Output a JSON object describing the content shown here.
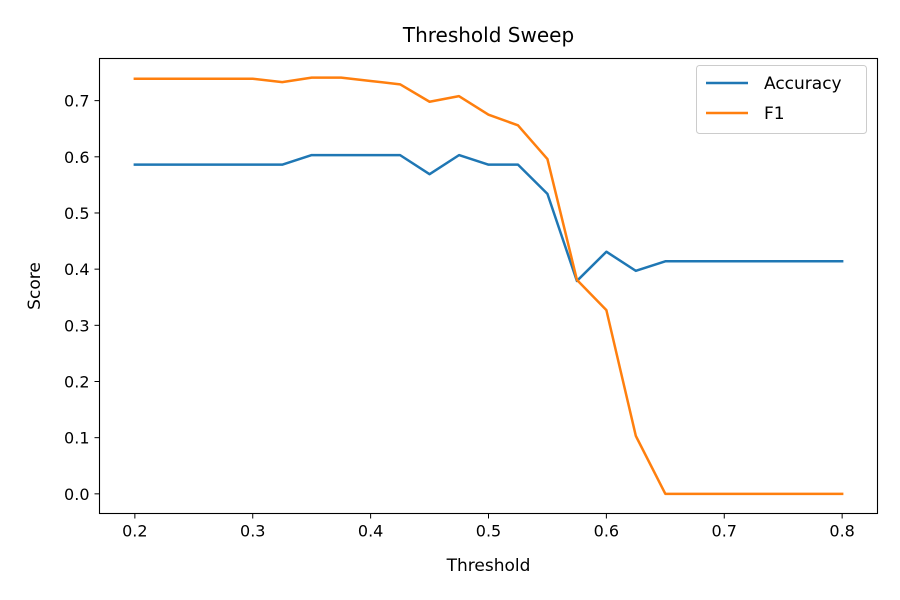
{
  "chart_data": {
    "type": "line",
    "title": "Threshold Sweep",
    "xlabel": "Threshold",
    "ylabel": "Score",
    "xlim": [
      0.17,
      0.83
    ],
    "ylim": [
      -0.035,
      0.775
    ],
    "xticks": [
      0.2,
      0.3,
      0.4,
      0.5,
      0.6,
      0.7,
      0.8
    ],
    "xtick_labels": [
      "0.2",
      "0.3",
      "0.4",
      "0.5",
      "0.6",
      "0.7",
      "0.8"
    ],
    "yticks": [
      0.0,
      0.1,
      0.2,
      0.3,
      0.4,
      0.5,
      0.6,
      0.7
    ],
    "ytick_labels": [
      "0.0",
      "0.1",
      "0.2",
      "0.3",
      "0.4",
      "0.5",
      "0.6",
      "0.7"
    ],
    "grid": false,
    "legend_position": "top-right",
    "x": [
      0.2,
      0.225,
      0.25,
      0.275,
      0.3,
      0.325,
      0.35,
      0.375,
      0.4,
      0.425,
      0.45,
      0.475,
      0.5,
      0.525,
      0.55,
      0.575,
      0.6,
      0.625,
      0.65,
      0.675,
      0.7,
      0.725,
      0.75,
      0.775,
      0.8
    ],
    "series": [
      {
        "name": "Accuracy",
        "color": "#1f77b4",
        "values": [
          0.586,
          0.586,
          0.586,
          0.586,
          0.586,
          0.586,
          0.603,
          0.603,
          0.603,
          0.603,
          0.569,
          0.603,
          0.586,
          0.586,
          0.534,
          0.379,
          0.431,
          0.397,
          0.414,
          0.414,
          0.414,
          0.414,
          0.414,
          0.414,
          0.414
        ]
      },
      {
        "name": "F1",
        "color": "#ff7f0e",
        "values": [
          0.739,
          0.739,
          0.739,
          0.739,
          0.739,
          0.733,
          0.741,
          0.741,
          0.735,
          0.729,
          0.698,
          0.708,
          0.675,
          0.656,
          0.596,
          0.381,
          0.327,
          0.103,
          0.0,
          0.0,
          0.0,
          0.0,
          0.0,
          0.0,
          0.0
        ]
      }
    ]
  }
}
